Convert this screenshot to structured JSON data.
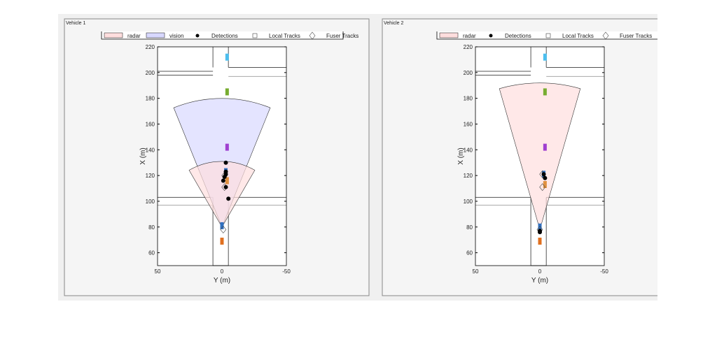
{
  "chart_data": [
    {
      "type": "scatter",
      "panel_title": "Vehicle 1",
      "xlabel": "Y (m)",
      "ylabel": "X (m)",
      "xlim": [
        50,
        -50
      ],
      "ylim": [
        50,
        220
      ],
      "xticks": [
        "50",
        "0",
        "-50"
      ],
      "yticks": [
        "220",
        "200",
        "180",
        "160",
        "140",
        "120",
        "100",
        "80",
        "60"
      ],
      "legend": [
        "radar",
        "vision",
        "Detections",
        "Local Tracks",
        "Fuser Tracks"
      ],
      "legend_placement": "top",
      "coverage": [
        {
          "name": "vision",
          "origin": [
            0,
            80
          ],
          "range": 100,
          "fov": 44,
          "color": "#d8d8ff"
        },
        {
          "name": "radar",
          "origin": [
            0,
            80
          ],
          "range": 51,
          "fov": 60,
          "color": "#ffdede"
        }
      ],
      "detections": [
        [
          -3,
          130
        ],
        [
          -3,
          123
        ],
        [
          -3,
          121
        ],
        [
          -2,
          119
        ],
        [
          -1,
          116
        ],
        [
          -3,
          111
        ],
        [
          -5,
          102
        ]
      ],
      "fuser_tracks": [
        [
          -1,
          78
        ],
        [
          -2,
          120
        ],
        [
          -2,
          111
        ]
      ],
      "vehicles": [
        {
          "pos": [
            -4,
            212
          ],
          "color": "#4dbeee"
        },
        {
          "pos": [
            -4,
            185
          ],
          "color": "#77ac30"
        },
        {
          "pos": [
            -4,
            142
          ],
          "color": "#a040d0"
        },
        {
          "pos": [
            0,
            81
          ],
          "color": "#3070c0"
        },
        {
          "pos": [
            0,
            69
          ],
          "color": "#e07020"
        },
        {
          "pos": [
            -3,
            123
          ],
          "color": "#3070c0"
        },
        {
          "pos": [
            -4,
            116
          ],
          "color": "#e09040"
        }
      ]
    },
    {
      "type": "scatter",
      "panel_title": "Vehicle 2",
      "xlabel": "Y (m)",
      "ylabel": "X (m)",
      "xlim": [
        50,
        -50
      ],
      "ylim": [
        50,
        220
      ],
      "xticks": [
        "50",
        "0",
        "-50"
      ],
      "yticks": [
        "220",
        "200",
        "180",
        "160",
        "140",
        "120",
        "100",
        "80",
        "60"
      ],
      "legend": [
        "radar",
        "Detections",
        "Local Tracks",
        "Fuser Tracks"
      ],
      "legend_placement": "top",
      "coverage": [
        {
          "name": "radar",
          "origin": [
            0,
            78
          ],
          "range": 114,
          "fov": 32,
          "color": "#ffdede"
        }
      ],
      "detections": [
        [
          0,
          77
        ],
        [
          0,
          76
        ],
        [
          -3,
          121
        ],
        [
          -4,
          118
        ]
      ],
      "fuser_tracks": [
        [
          0,
          78
        ],
        [
          -2,
          121
        ],
        [
          -2,
          111
        ]
      ],
      "vehicles": [
        {
          "pos": [
            -4,
            212
          ],
          "color": "#4dbeee"
        },
        {
          "pos": [
            -4,
            185
          ],
          "color": "#77ac30"
        },
        {
          "pos": [
            -4,
            142
          ],
          "color": "#a040d0"
        },
        {
          "pos": [
            0,
            80
          ],
          "color": "#3070c0"
        },
        {
          "pos": [
            0,
            69
          ],
          "color": "#e07020"
        },
        {
          "pos": [
            -3,
            121
          ],
          "color": "#3070c0"
        },
        {
          "pos": [
            -4,
            113
          ],
          "color": "#e09040"
        }
      ]
    }
  ]
}
